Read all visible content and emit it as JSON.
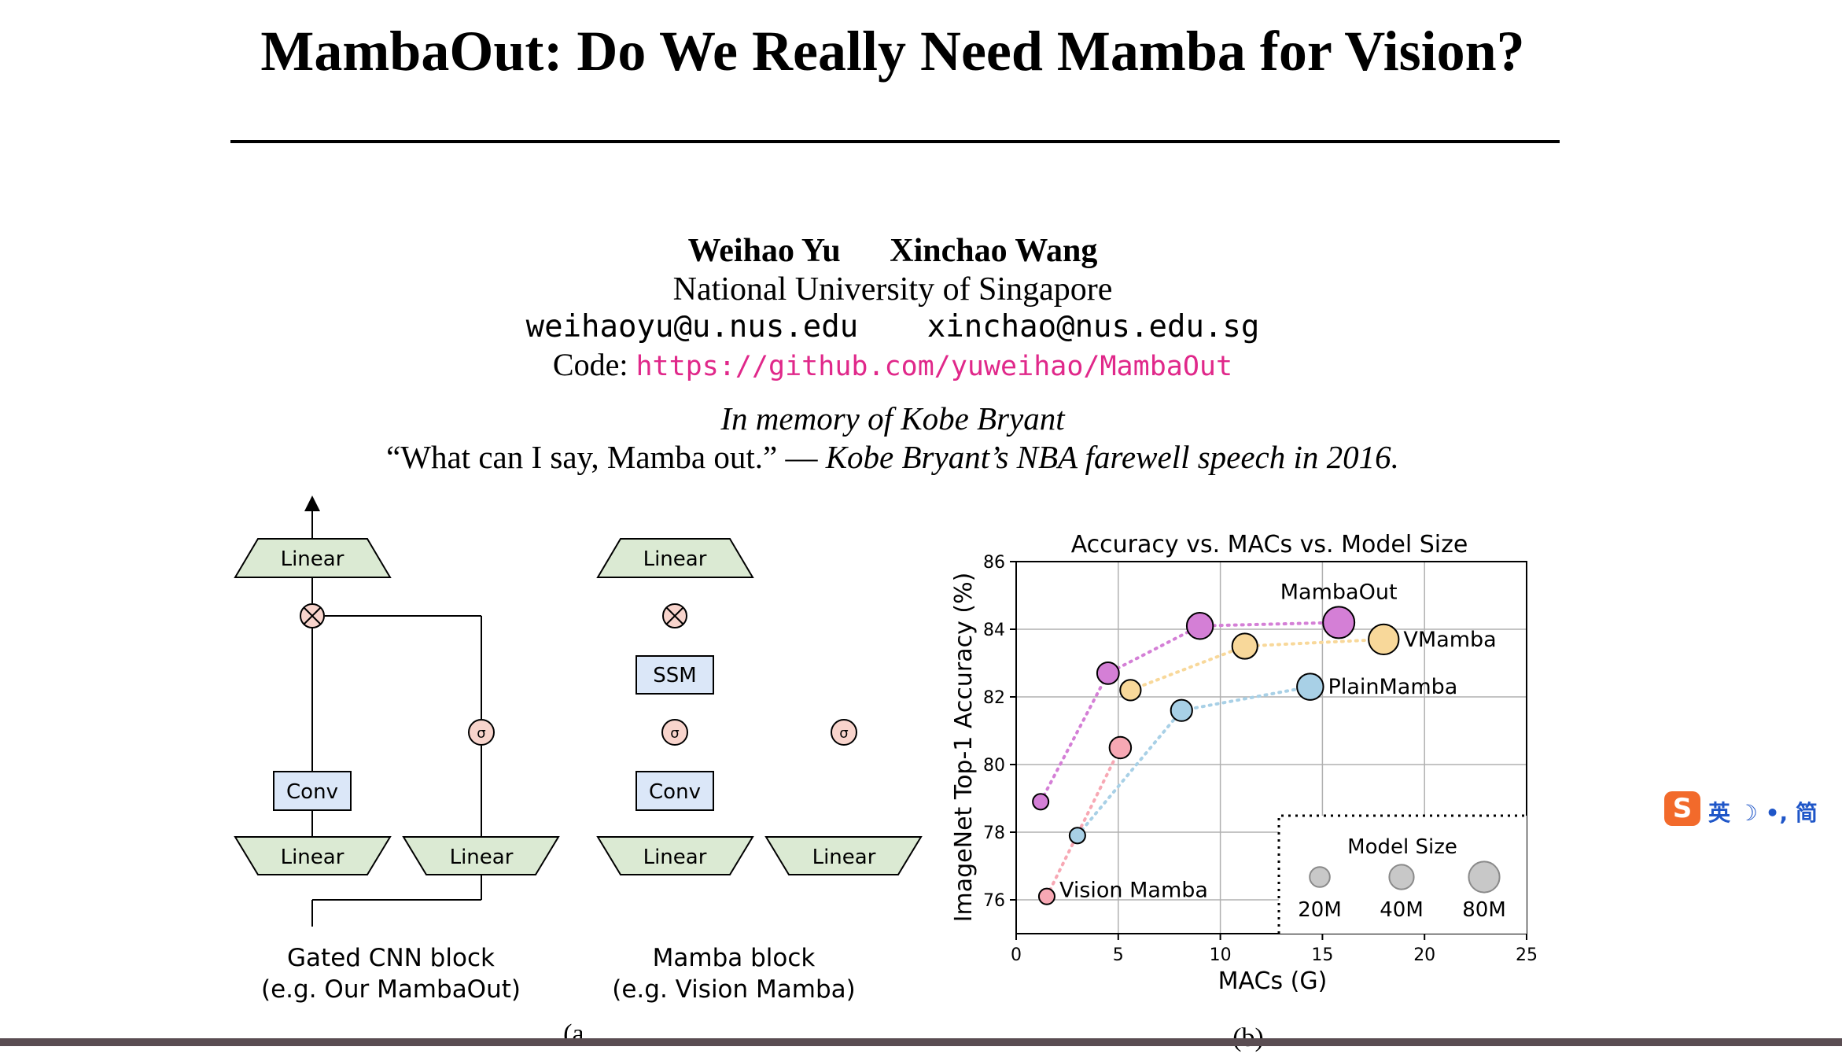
{
  "paper": {
    "title": "MambaOut: Do We Really Need Mamba for Vision?",
    "authors": [
      "Weihao Yu",
      "Xinchao Wang"
    ],
    "affiliation": "National University of Singapore",
    "emails": [
      "weihaoyu@u.nus.edu",
      "xinchao@nus.edu.sg"
    ],
    "code_label": "Code:",
    "code_url": "https://github.com/yuweihao/MambaOut",
    "memory": "In memory of Kobe Bryant",
    "quote": "“What can I say, Mamba out.” —",
    "quote_source": "Kobe Bryant’s NBA farewell speech in 2016."
  },
  "diagram_a": {
    "linear": "Linear",
    "conv": "Conv",
    "ssm": "SSM",
    "sigma": "σ",
    "multiply": "⊗",
    "gated_caption_1": "Gated CNN block",
    "gated_caption_2": "(e.g. Our MambaOut)",
    "mamba_caption_1": "Mamba block",
    "mamba_caption_2": "(e.g. Vision Mamba)",
    "panel_label": "(a)"
  },
  "chart_data": {
    "type": "scatter",
    "title": "Accuracy vs. MACs vs. Model Size",
    "xlabel": "MACs (G)",
    "ylabel": "ImageNet Top-1 Accuracy (%)",
    "xlim": [
      0,
      25
    ],
    "ylim": [
      75,
      86
    ],
    "xticks": [
      0,
      5,
      10,
      15,
      20,
      25
    ],
    "yticks": [
      76,
      78,
      80,
      82,
      84,
      86
    ],
    "grid": true,
    "panel_label": "(b)",
    "series": [
      {
        "name": "MambaOut",
        "color": "#d47fd6",
        "label_at_last": true,
        "points": [
          {
            "x": 1.2,
            "y": 78.9,
            "params": 7
          },
          {
            "x": 4.5,
            "y": 82.7,
            "params": 27
          },
          {
            "x": 9.0,
            "y": 84.1,
            "params": 50
          },
          {
            "x": 15.8,
            "y": 84.2,
            "params": 85
          }
        ]
      },
      {
        "name": "VMamba",
        "color": "#f8d89a",
        "label_at_last": true,
        "points": [
          {
            "x": 5.6,
            "y": 82.2,
            "params": 22
          },
          {
            "x": 11.2,
            "y": 83.5,
            "params": 44
          },
          {
            "x": 18.0,
            "y": 83.7,
            "params": 75
          }
        ]
      },
      {
        "name": "PlainMamba",
        "color": "#a8d0e6",
        "label_at_last": true,
        "points": [
          {
            "x": 3.0,
            "y": 77.9,
            "params": 7
          },
          {
            "x": 8.1,
            "y": 81.6,
            "params": 25
          },
          {
            "x": 14.4,
            "y": 82.3,
            "params": 50
          }
        ]
      },
      {
        "name": "Vision Mamba",
        "color": "#f7a8b4",
        "label_at_first": true,
        "points": [
          {
            "x": 1.5,
            "y": 76.1,
            "params": 7
          },
          {
            "x": 5.1,
            "y": 80.5,
            "params": 26
          }
        ]
      }
    ],
    "size_legend": {
      "title": "Model Size",
      "items": [
        "20M",
        "40M",
        "80M"
      ],
      "params": [
        20,
        40,
        80
      ]
    }
  },
  "overlay": {
    "ime_logo": "S",
    "ime_text": "英 ☽ •, 简"
  }
}
